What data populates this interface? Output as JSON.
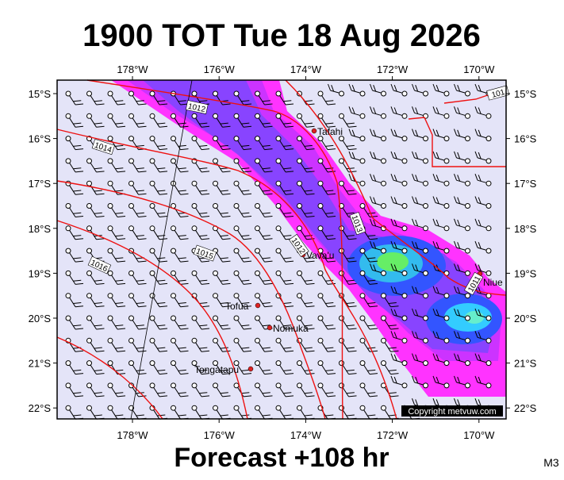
{
  "header": {
    "title": "1900 TOT Tue 18 Aug 2026"
  },
  "footer": {
    "text": "Forecast +108 hr",
    "model": "M3"
  },
  "copyright": "Copyright metvuw.com",
  "map": {
    "lon_ticks": [
      {
        "value": 178,
        "label": "178°W"
      },
      {
        "value": 176,
        "label": "176°W"
      },
      {
        "value": 174,
        "label": "174°W"
      },
      {
        "value": 172,
        "label": "172°W"
      },
      {
        "value": 170,
        "label": "170°W"
      }
    ],
    "lat_ticks": [
      {
        "value": 15,
        "label": "15°S"
      },
      {
        "value": 16,
        "label": "16°S"
      },
      {
        "value": 17,
        "label": "17°S"
      },
      {
        "value": 18,
        "label": "18°S"
      },
      {
        "value": 19,
        "label": "19°S"
      },
      {
        "value": 20,
        "label": "20°S"
      },
      {
        "value": 21,
        "label": "21°S"
      },
      {
        "value": 22,
        "label": "22°S"
      }
    ],
    "places": [
      "Tafahi",
      "Vava'u",
      "Niue",
      "Tofua",
      "Nomuka",
      "Tongatapu"
    ],
    "isobar_labels": [
      "1012",
      "1014",
      "1016",
      "1015",
      "1013",
      "1012",
      "1011",
      "101"
    ]
  }
}
